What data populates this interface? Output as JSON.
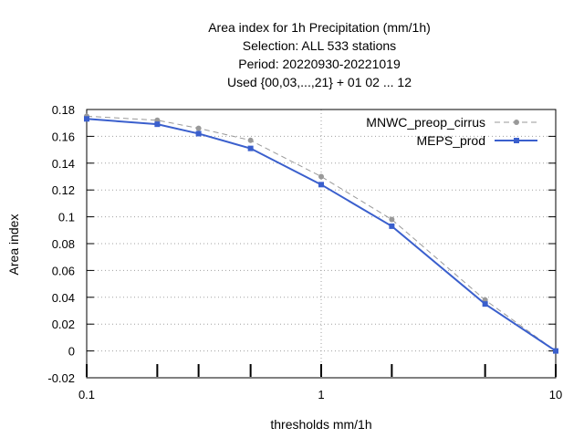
{
  "chart_data": {
    "type": "line",
    "title_lines": [
      "Area index  for 1h Precipitation (mm/1h)",
      "Selection: ALL    533 stations",
      "Period: 20220930-20221019",
      "Used {00,03,...,21} + 01 02 ... 12"
    ],
    "xlabel": "thresholds mm/1h",
    "ylabel": "Area index",
    "x_scale": "log",
    "xlim": [
      0.1,
      10
    ],
    "ylim": [
      -0.02,
      0.18
    ],
    "x_ticks": [
      {
        "value": 0.1,
        "label": "0.1"
      },
      {
        "value": 1,
        "label": "1"
      },
      {
        "value": 10,
        "label": "10"
      }
    ],
    "y_ticks": [
      {
        "value": -0.02,
        "label": "-0.02"
      },
      {
        "value": 0,
        "label": "0"
      },
      {
        "value": 0.02,
        "label": "0.02"
      },
      {
        "value": 0.04,
        "label": "0.04"
      },
      {
        "value": 0.06,
        "label": "0.06"
      },
      {
        "value": 0.08,
        "label": "0.08"
      },
      {
        "value": 0.1,
        "label": "0.1"
      },
      {
        "value": 0.12,
        "label": "0.12"
      },
      {
        "value": 0.14,
        "label": "0.14"
      },
      {
        "value": 0.16,
        "label": "0.16"
      },
      {
        "value": 0.18,
        "label": "0.18"
      }
    ],
    "grid": true,
    "legend_position": "top-right",
    "x": [
      0.1,
      0.2,
      0.3,
      0.5,
      1,
      2,
      5,
      10
    ],
    "series": [
      {
        "name": "MNWC_preop_cirrus",
        "values": [
          0.175,
          0.172,
          0.166,
          0.157,
          0.13,
          0.098,
          0.038,
          0.0
        ],
        "color": "#999999",
        "style": "dashed"
      },
      {
        "name": "MEPS_prod",
        "values": [
          0.173,
          0.169,
          0.162,
          0.151,
          0.124,
          0.093,
          0.035,
          0.0
        ],
        "color": "#3a5fcd",
        "style": "solid"
      }
    ],
    "sample_size_ticks_at": [
      0.1,
      0.2,
      0.3,
      0.5,
      1,
      2,
      5,
      10
    ]
  }
}
